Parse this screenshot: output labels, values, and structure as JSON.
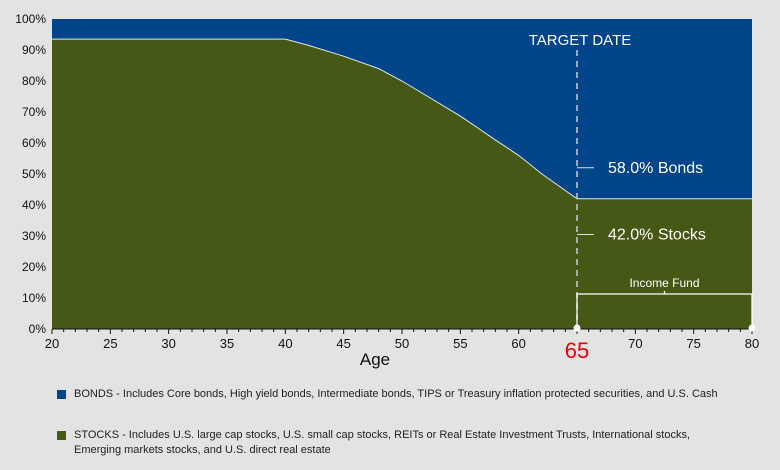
{
  "chart_data": {
    "type": "area",
    "xlabel": "Age",
    "ylabel": "",
    "xlim": [
      20,
      80
    ],
    "ylim": [
      0,
      100
    ],
    "x_ticks": [
      20,
      25,
      30,
      35,
      40,
      45,
      50,
      55,
      60,
      65,
      70,
      75,
      80
    ],
    "y_ticks": [
      "0%",
      "10%",
      "20%",
      "30%",
      "40%",
      "50%",
      "60%",
      "70%",
      "80%",
      "90%",
      "100%"
    ],
    "series": [
      {
        "name": "STOCKS",
        "color": "#465815",
        "x": [
          20,
          40,
          42,
          45,
          48,
          50,
          55,
          58,
          60,
          62,
          65,
          80
        ],
        "y": [
          93.5,
          93.5,
          91.5,
          88,
          84,
          80,
          68.7,
          61,
          56,
          50,
          42,
          42
        ]
      },
      {
        "name": "BONDS",
        "color": "#00448a",
        "note_fill": "remainder to 100%"
      }
    ],
    "target_marker": {
      "x": 65,
      "label": "TARGET DATE",
      "highlight_label": "65",
      "highlight_color": "#e8000d"
    },
    "annotations": {
      "bonds": "58.0% Bonds",
      "stocks": "42.0% Stocks",
      "income_fund": "Income Fund"
    },
    "grid": false,
    "legend_position": "bottom"
  },
  "legend": [
    {
      "color": "#00448a",
      "text": "BONDS - Includes Core bonds, High yield bonds, Intermediate bonds, TIPS or Treasury inflation protected securities, and U.S. Cash"
    },
    {
      "color": "#465815",
      "text": "STOCKS - Includes U.S. large cap stocks, U.S. small cap stocks, REITs or Real Estate Investment Trusts, International stocks, Emerging markets stocks, and U.S. direct real estate"
    }
  ]
}
